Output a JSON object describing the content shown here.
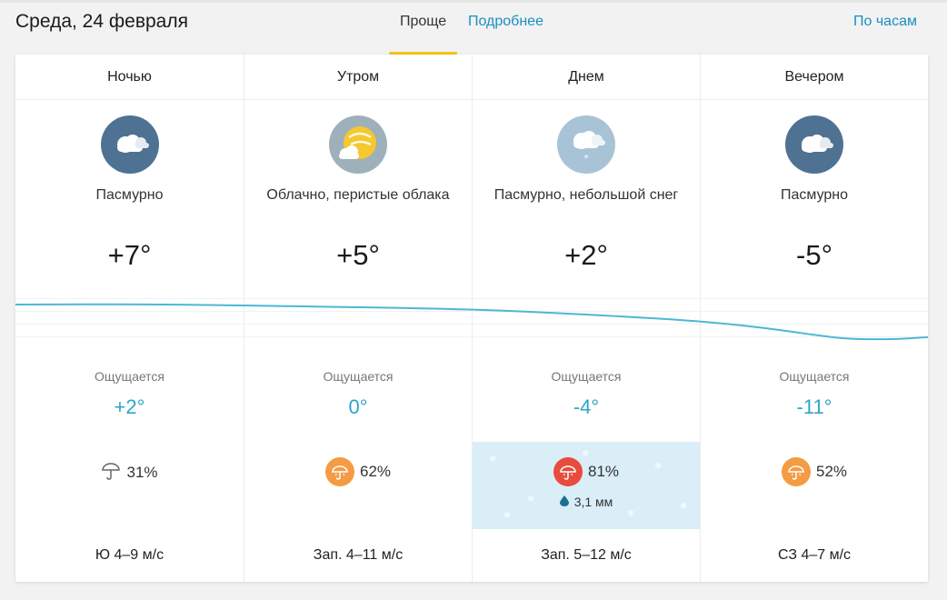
{
  "header": {
    "date": "Среда, 24 февраля",
    "tabs": [
      {
        "label": "Проще",
        "active": true
      },
      {
        "label": "Подробнее",
        "active": false
      }
    ],
    "by_hours": "По часам"
  },
  "colors": {
    "accent": "#f3c318",
    "link": "#1a8fc0",
    "feels": "#2da6c8",
    "graph_line": "#4cb8d3",
    "precip_orange": "#f49b43",
    "precip_red": "#e84c3d",
    "snow_bg": "#d9eef7"
  },
  "periods": [
    {
      "name": "Ночью",
      "icon": "overcast-icon",
      "condition": "Пасмурно",
      "temp": "+7°",
      "feels_label": "Ощущается",
      "feels": "+2°",
      "precip": "31%",
      "precip_level": "low",
      "wind": "Ю 4–9 м/с"
    },
    {
      "name": "Утром",
      "icon": "partly-cloudy-icon",
      "condition": "Облачно, перистые облака",
      "temp": "+5°",
      "feels_label": "Ощущается",
      "feels": "0°",
      "precip": "62%",
      "precip_level": "medium",
      "wind": "Зап. 4–11 м/с"
    },
    {
      "name": "Днем",
      "icon": "overcast-light-snow-icon",
      "condition": "Пасмурно, небольшой снег",
      "temp": "+2°",
      "feels_label": "Ощущается",
      "feels": "-4°",
      "precip": "81%",
      "precip_level": "high",
      "amount": "3,1 мм",
      "wind": "Зап. 5–12 м/с"
    },
    {
      "name": "Вечером",
      "icon": "overcast-icon",
      "condition": "Пасмурно",
      "temp": "-5°",
      "feels_label": "Ощущается",
      "feels": "-11°",
      "precip": "52%",
      "precip_level": "medium",
      "wind": "СЗ 4–7 м/с"
    }
  ]
}
